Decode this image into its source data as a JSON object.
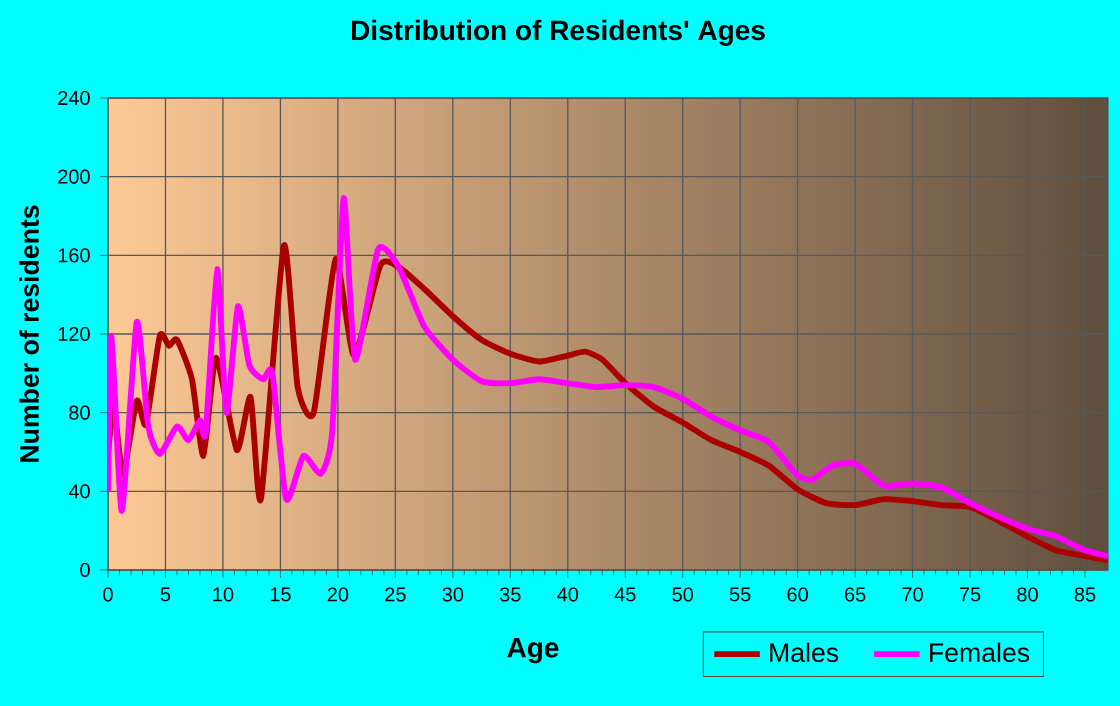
{
  "chart_data": {
    "type": "line",
    "title": "Distribution of Residents' Ages",
    "xlabel": "Age",
    "ylabel": "Number of residents",
    "xlim": [
      0,
      87
    ],
    "ylim": [
      0,
      240
    ],
    "xticks": [
      0,
      5,
      10,
      15,
      20,
      25,
      30,
      35,
      40,
      45,
      50,
      55,
      60,
      65,
      70,
      75,
      80,
      85
    ],
    "yticks": [
      0,
      40,
      80,
      120,
      160,
      200,
      240
    ],
    "grid": true,
    "legend": "bottom right",
    "line_style": "solid",
    "marker": "none",
    "series": [
      {
        "name": "Males",
        "color": "#aa0000",
        "x": [
          0,
          0.5,
          1.3,
          2.5,
          3.3,
          4.5,
          5.3,
          6,
          7.3,
          8.3,
          9.4,
          11.2,
          12.4,
          13.3,
          15.3,
          16.5,
          17.9,
          19.8,
          21.4,
          23.7,
          25.3,
          27.5,
          30,
          32.5,
          35,
          37.5,
          40,
          41.5,
          43,
          45,
          47.5,
          50,
          52.5,
          55,
          57.5,
          60,
          62.5,
          65,
          67.5,
          70,
          72.5,
          75,
          77.5,
          80,
          82.5,
          85,
          87
        ],
        "values": [
          59,
          83,
          49,
          86,
          74,
          119,
          114,
          117,
          97,
          58,
          108,
          61,
          88,
          36,
          165,
          93,
          80,
          158,
          109,
          155,
          154,
          143,
          129,
          117,
          110,
          106,
          109,
          111,
          107,
          95,
          83,
          75,
          66,
          60,
          53,
          41,
          34,
          33,
          36,
          35,
          33,
          32,
          25,
          17,
          10,
          7,
          5
        ]
      },
      {
        "name": "Females",
        "color": "#ff00ff",
        "x": [
          0,
          0.3,
          1.2,
          2.5,
          3.5,
          4.5,
          6,
          7,
          8,
          8.5,
          9.5,
          10.3,
          11.3,
          12.3,
          13.5,
          14.3,
          15.5,
          17,
          18.5,
          19.5,
          20.5,
          21.5,
          23.5,
          25.3,
          27.5,
          30,
          32.5,
          35,
          37.5,
          40,
          42.5,
          45,
          47.5,
          50,
          52.5,
          55,
          57.5,
          60,
          61.3,
          63,
          65,
          67.5,
          70,
          72.5,
          75,
          77.5,
          80,
          82.5,
          85,
          87
        ],
        "values": [
          40,
          119,
          30,
          126,
          73,
          59,
          73,
          66,
          76,
          70,
          153,
          80,
          134,
          104,
          97,
          100,
          36,
          58,
          49,
          70,
          189,
          107,
          163,
          154,
          124,
          107,
          96,
          95,
          97,
          95,
          93,
          94,
          93,
          87,
          78,
          71,
          65,
          48,
          46,
          53,
          54,
          43,
          44,
          42,
          34,
          27,
          21,
          17,
          10,
          7
        ]
      }
    ]
  }
}
